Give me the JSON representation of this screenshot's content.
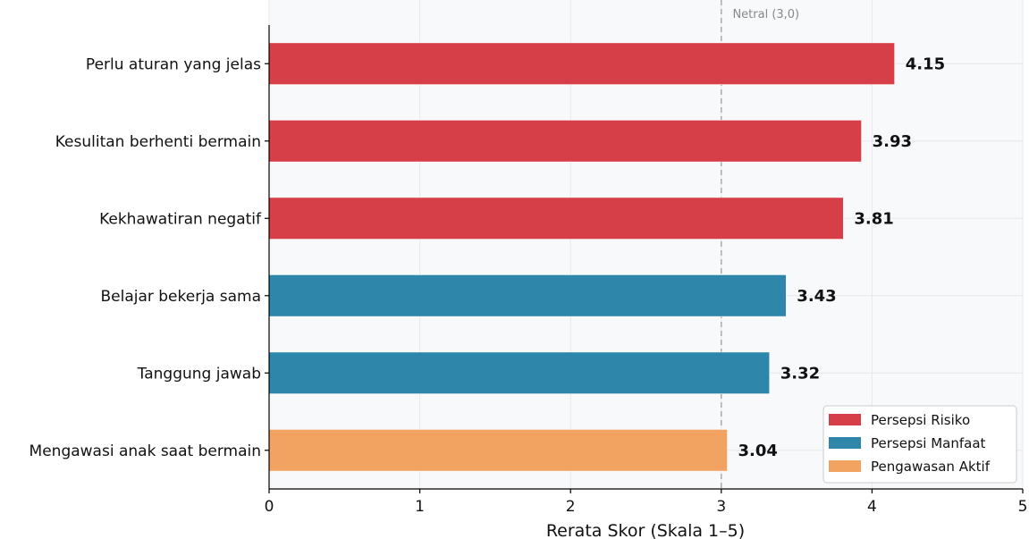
{
  "chart_data": {
    "type": "bar",
    "orientation": "horizontal",
    "categories": [
      "Perlu aturan yang jelas",
      "Kesulitan berhenti bermain",
      "Kekhawatiran negatif",
      "Belajar bekerja sama",
      "Tanggung jawab",
      "Mengawasi anak saat bermain"
    ],
    "values": [
      4.15,
      3.93,
      3.81,
      3.43,
      3.32,
      3.04
    ],
    "value_labels": [
      "4.15",
      "3.93",
      "3.81",
      "3.43",
      "3.32",
      "3.04"
    ],
    "groups": [
      0,
      0,
      0,
      1,
      1,
      2
    ],
    "legend": [
      {
        "name": "Persepsi Risiko",
        "color": "#d63f48"
      },
      {
        "name": "Persepsi Manfaat",
        "color": "#2e86ab"
      },
      {
        "name": "Pengawasan Aktif",
        "color": "#f2a261"
      }
    ],
    "xlabel": "Rerata Skor (Skala 1–5)",
    "ylabel": "",
    "xlim": [
      0,
      5
    ],
    "xticks": [
      0,
      1,
      2,
      3,
      4,
      5
    ],
    "reference_line": {
      "value": 3,
      "label": "Netral (3,0)"
    },
    "grid": true,
    "legend_position": "lower-right"
  }
}
